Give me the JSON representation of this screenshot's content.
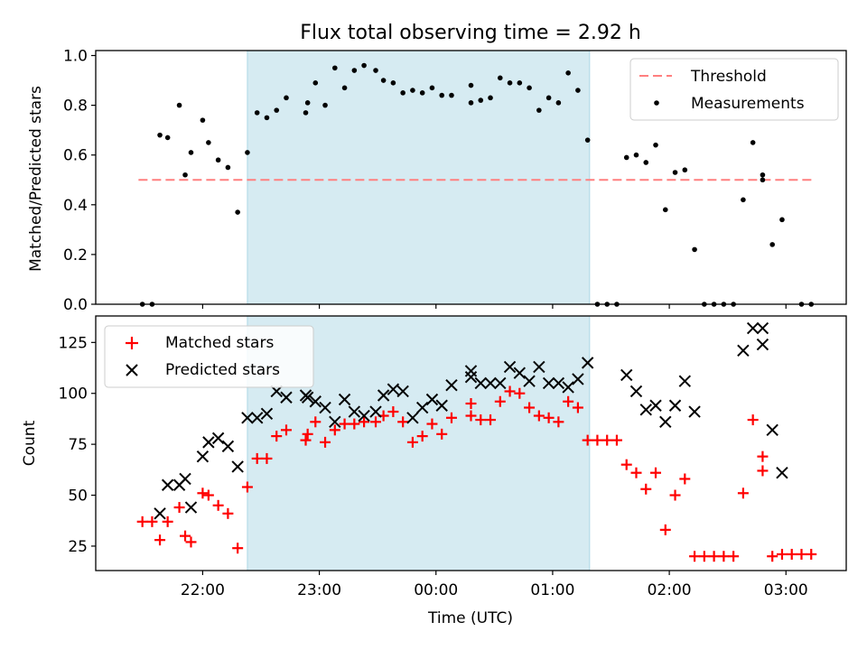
{
  "chart_data": [
    {
      "type": "scatter",
      "title": "Flux total observing time = 2.92 h",
      "xlabel": "",
      "ylabel": "Matched/Predicted stars",
      "ylim": [
        0,
        1.02
      ],
      "yticks": [
        "0.0",
        "0.2",
        "0.4",
        "0.6",
        "0.8",
        "1.0"
      ],
      "legend_position": "top-right",
      "highlight_span": [
        "22:23",
        "01:19"
      ],
      "highlight_color": "#add8e6",
      "threshold": {
        "name": "Threshold",
        "y": 0.5,
        "x_range": [
          "21:27",
          "03:15"
        ],
        "color": "#ff7f7f",
        "style": "dashed"
      },
      "series": [
        {
          "name": "Measurements",
          "color": "#000000",
          "marker": "dot",
          "points": [
            [
              "21:29",
              0.0
            ],
            [
              "21:34",
              0.0
            ],
            [
              "21:38",
              0.68
            ],
            [
              "21:42",
              0.67
            ],
            [
              "21:48",
              0.8
            ],
            [
              "21:51",
              0.52
            ],
            [
              "21:54",
              0.61
            ],
            [
              "22:00",
              0.74
            ],
            [
              "22:03",
              0.65
            ],
            [
              "22:08",
              0.58
            ],
            [
              "22:13",
              0.55
            ],
            [
              "22:18",
              0.37
            ],
            [
              "22:23",
              0.61
            ],
            [
              "22:28",
              0.77
            ],
            [
              "22:33",
              0.75
            ],
            [
              "22:38",
              0.78
            ],
            [
              "22:43",
              0.83
            ],
            [
              "22:53",
              0.77
            ],
            [
              "22:54",
              0.81
            ],
            [
              "22:58",
              0.89
            ],
            [
              "23:03",
              0.8
            ],
            [
              "23:08",
              0.95
            ],
            [
              "23:13",
              0.87
            ],
            [
              "23:18",
              0.94
            ],
            [
              "23:23",
              0.96
            ],
            [
              "23:29",
              0.94
            ],
            [
              "23:33",
              0.9
            ],
            [
              "23:38",
              0.89
            ],
            [
              "23:43",
              0.85
            ],
            [
              "23:48",
              0.86
            ],
            [
              "23:53",
              0.85
            ],
            [
              "23:58",
              0.87
            ],
            [
              "00:03",
              0.84
            ],
            [
              "00:08",
              0.84
            ],
            [
              "00:18",
              0.88
            ],
            [
              "00:18",
              0.81
            ],
            [
              "00:23",
              0.82
            ],
            [
              "00:28",
              0.83
            ],
            [
              "00:33",
              0.91
            ],
            [
              "00:38",
              0.89
            ],
            [
              "00:43",
              0.89
            ],
            [
              "00:48",
              0.87
            ],
            [
              "00:53",
              0.78
            ],
            [
              "00:58",
              0.83
            ],
            [
              "01:03",
              0.81
            ],
            [
              "01:08",
              0.93
            ],
            [
              "01:13",
              0.86
            ],
            [
              "01:18",
              0.66
            ],
            [
              "01:23",
              0.0
            ],
            [
              "01:28",
              0.0
            ],
            [
              "01:33",
              0.0
            ],
            [
              "01:38",
              0.59
            ],
            [
              "01:43",
              0.6
            ],
            [
              "01:48",
              0.57
            ],
            [
              "01:53",
              0.64
            ],
            [
              "01:58",
              0.38
            ],
            [
              "02:03",
              0.53
            ],
            [
              "02:08",
              0.54
            ],
            [
              "02:13",
              0.22
            ],
            [
              "02:18",
              0.0
            ],
            [
              "02:23",
              0.0
            ],
            [
              "02:28",
              0.0
            ],
            [
              "02:33",
              0.0
            ],
            [
              "02:38",
              0.42
            ],
            [
              "02:43",
              0.65
            ],
            [
              "02:48",
              0.52
            ],
            [
              "02:48",
              0.5
            ],
            [
              "02:53",
              0.24
            ],
            [
              "02:58",
              0.34
            ],
            [
              "03:08",
              0.0
            ],
            [
              "03:13",
              0.0
            ]
          ]
        }
      ]
    },
    {
      "type": "scatter",
      "title": "",
      "xlabel": "Time (UTC)",
      "ylabel": "Count",
      "ylim": [
        13,
        138
      ],
      "yticks": [
        "25",
        "50",
        "75",
        "100",
        "125"
      ],
      "xticks": [
        "22:00",
        "23:00",
        "00:00",
        "01:00",
        "02:00",
        "03:00"
      ],
      "legend_position": "top-left",
      "highlight_span": [
        "22:23",
        "01:19"
      ],
      "highlight_color": "#add8e6",
      "series": [
        {
          "name": "Matched stars",
          "color": "#ff0000",
          "marker": "plus",
          "points": [
            [
              "21:29",
              37
            ],
            [
              "21:34",
              37
            ],
            [
              "21:38",
              28
            ],
            [
              "21:42",
              37
            ],
            [
              "21:48",
              44
            ],
            [
              "21:51",
              30
            ],
            [
              "21:54",
              27
            ],
            [
              "22:00",
              51
            ],
            [
              "22:03",
              50
            ],
            [
              "22:08",
              45
            ],
            [
              "22:13",
              41
            ],
            [
              "22:18",
              24
            ],
            [
              "22:23",
              54
            ],
            [
              "22:28",
              68
            ],
            [
              "22:33",
              68
            ],
            [
              "22:38",
              79
            ],
            [
              "22:43",
              82
            ],
            [
              "22:53",
              77
            ],
            [
              "22:54",
              80
            ],
            [
              "22:58",
              86
            ],
            [
              "23:03",
              76
            ],
            [
              "23:08",
              82
            ],
            [
              "23:13",
              85
            ],
            [
              "23:18",
              85
            ],
            [
              "23:23",
              86
            ],
            [
              "23:29",
              86
            ],
            [
              "23:33",
              89
            ],
            [
              "23:38",
              91
            ],
            [
              "23:43",
              86
            ],
            [
              "23:48",
              76
            ],
            [
              "23:53",
              79
            ],
            [
              "23:58",
              85
            ],
            [
              "00:03",
              80
            ],
            [
              "00:08",
              88
            ],
            [
              "00:18",
              95
            ],
            [
              "00:18",
              89
            ],
            [
              "00:23",
              87
            ],
            [
              "00:28",
              87
            ],
            [
              "00:33",
              96
            ],
            [
              "00:38",
              101
            ],
            [
              "00:43",
              100
            ],
            [
              "00:48",
              93
            ],
            [
              "00:53",
              89
            ],
            [
              "00:58",
              88
            ],
            [
              "01:03",
              86
            ],
            [
              "01:08",
              96
            ],
            [
              "01:13",
              93
            ],
            [
              "01:18",
              77
            ],
            [
              "01:23",
              77
            ],
            [
              "01:28",
              77
            ],
            [
              "01:33",
              77
            ],
            [
              "01:38",
              65
            ],
            [
              "01:43",
              61
            ],
            [
              "01:48",
              53
            ],
            [
              "01:53",
              61
            ],
            [
              "01:58",
              33
            ],
            [
              "02:03",
              50
            ],
            [
              "02:08",
              58
            ],
            [
              "02:13",
              20
            ],
            [
              "02:18",
              20
            ],
            [
              "02:23",
              20
            ],
            [
              "02:28",
              20
            ],
            [
              "02:33",
              20
            ],
            [
              "02:38",
              51
            ],
            [
              "02:43",
              87
            ],
            [
              "02:48",
              69
            ],
            [
              "02:48",
              62
            ],
            [
              "02:53",
              20
            ],
            [
              "02:58",
              21
            ],
            [
              "03:03",
              21
            ],
            [
              "03:08",
              21
            ],
            [
              "03:13",
              21
            ]
          ]
        },
        {
          "name": "Predicted stars",
          "color": "#000000",
          "marker": "x",
          "points": [
            [
              "21:38",
              41
            ],
            [
              "21:42",
              55
            ],
            [
              "21:48",
              55
            ],
            [
              "21:51",
              58
            ],
            [
              "21:54",
              44
            ],
            [
              "22:00",
              69
            ],
            [
              "22:03",
              76
            ],
            [
              "22:08",
              78
            ],
            [
              "22:13",
              74
            ],
            [
              "22:18",
              64
            ],
            [
              "22:23",
              88
            ],
            [
              "22:28",
              88
            ],
            [
              "22:33",
              90
            ],
            [
              "22:38",
              101
            ],
            [
              "22:43",
              98
            ],
            [
              "22:53",
              99
            ],
            [
              "22:54",
              98
            ],
            [
              "22:58",
              96
            ],
            [
              "23:03",
              93
            ],
            [
              "23:08",
              86
            ],
            [
              "23:13",
              97
            ],
            [
              "23:18",
              91
            ],
            [
              "23:23",
              89
            ],
            [
              "23:29",
              91
            ],
            [
              "23:33",
              99
            ],
            [
              "23:38",
              102
            ],
            [
              "23:43",
              101
            ],
            [
              "23:48",
              88
            ],
            [
              "23:53",
              93
            ],
            [
              "23:58",
              97
            ],
            [
              "00:03",
              94
            ],
            [
              "00:08",
              104
            ],
            [
              "00:18",
              111
            ],
            [
              "00:18",
              108
            ],
            [
              "00:23",
              105
            ],
            [
              "00:28",
              105
            ],
            [
              "00:33",
              105
            ],
            [
              "00:38",
              113
            ],
            [
              "00:43",
              110
            ],
            [
              "00:48",
              106
            ],
            [
              "00:53",
              113
            ],
            [
              "00:58",
              105
            ],
            [
              "01:03",
              105
            ],
            [
              "01:08",
              103
            ],
            [
              "01:13",
              107
            ],
            [
              "01:18",
              115
            ],
            [
              "01:38",
              109
            ],
            [
              "01:43",
              101
            ],
            [
              "01:48",
              92
            ],
            [
              "01:53",
              94
            ],
            [
              "01:58",
              86
            ],
            [
              "02:03",
              94
            ],
            [
              "02:08",
              106
            ],
            [
              "02:13",
              91
            ],
            [
              "02:38",
              121
            ],
            [
              "02:43",
              132
            ],
            [
              "02:48",
              132
            ],
            [
              "02:48",
              124
            ],
            [
              "02:53",
              82
            ],
            [
              "02:58",
              61
            ]
          ]
        }
      ]
    }
  ]
}
